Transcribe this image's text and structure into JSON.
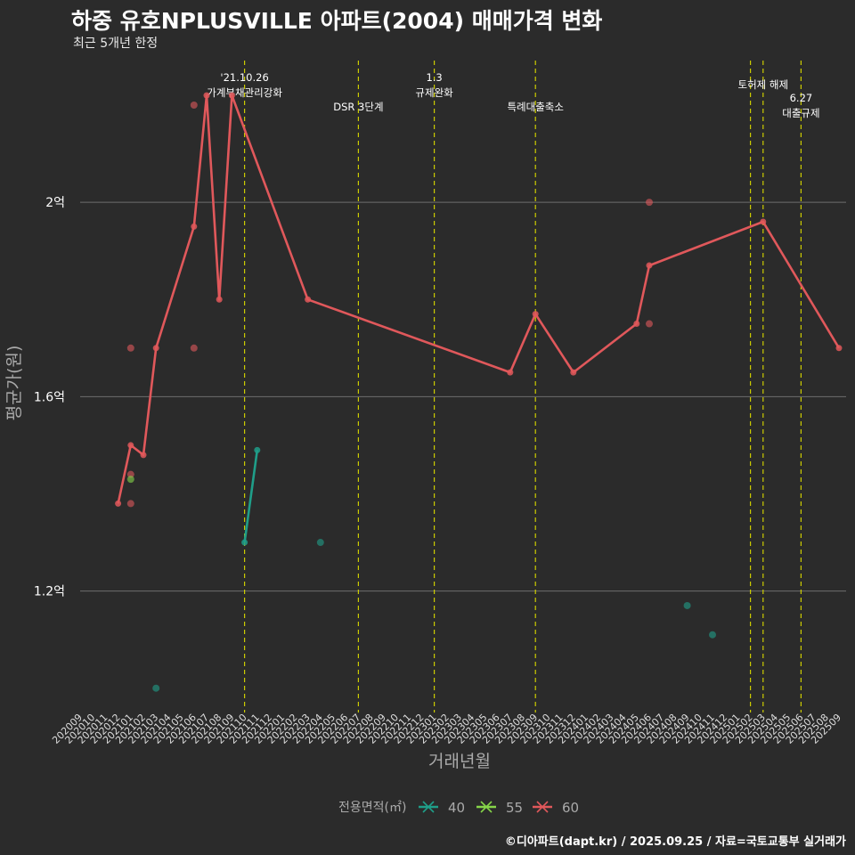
{
  "header": {
    "title": "하중 유호NPLUSVILLE 아파트(2004) 매매가격 변화",
    "subtitle": "최근 5개년 한정"
  },
  "caption": "©디아파트(dapt.kr) / 2025.09.25 / 자료=국토교통부 실거래가",
  "colors": {
    "s40": "#1f9e89",
    "s55": "#86d549",
    "s60": "#e0585b",
    "vline": "#cccc00",
    "grid": "#6e6e6e",
    "axis_text": "#ffffff",
    "axis_title": "#aaaaaa"
  },
  "chart_data": {
    "type": "line",
    "xlabel": "거래년월",
    "ylabel": "평균가(원)",
    "ylim": [
      0.95,
      2.31
    ],
    "yticks": [
      {
        "v": 1.2,
        "label": "1.2억"
      },
      {
        "v": 1.6,
        "label": "1.6억"
      },
      {
        "v": 2.0,
        "label": "2억"
      }
    ],
    "categories": [
      "202009",
      "202010",
      "202011",
      "202012",
      "202101",
      "202102",
      "202103",
      "202104",
      "202105",
      "202106",
      "202107",
      "202108",
      "202109",
      "202110",
      "202111",
      "202112",
      "202201",
      "202202",
      "202203",
      "202204",
      "202205",
      "202206",
      "202207",
      "202208",
      "202209",
      "202210",
      "202211",
      "202212",
      "202301",
      "202302",
      "202303",
      "202304",
      "202305",
      "202306",
      "202307",
      "202308",
      "202309",
      "202310",
      "202311",
      "202312",
      "202401",
      "202402",
      "202403",
      "202404",
      "202405",
      "202406",
      "202407",
      "202408",
      "202409",
      "202410",
      "202411",
      "202412",
      "202501",
      "202502",
      "202503",
      "202504",
      "202505",
      "202506",
      "202507",
      "202508",
      "202509"
    ],
    "legend_title": "전용면적(㎡)",
    "legend": [
      {
        "key": "s40",
        "label": "40"
      },
      {
        "key": "s55",
        "label": "55"
      },
      {
        "key": "s60",
        "label": "60"
      }
    ],
    "events": [
      {
        "month": "202110",
        "lines": [
          "'21.10.26",
          "가계부채관리강화"
        ],
        "level": 0
      },
      {
        "month": "202207",
        "lines": [
          "DSR 3단계"
        ],
        "level": 1
      },
      {
        "month": "202301",
        "lines": [
          "1.3",
          "규제완화"
        ],
        "level": 0
      },
      {
        "month": "202309",
        "lines": [
          "특례대출축소"
        ],
        "level": 1
      },
      {
        "month": "202502",
        "lines": [],
        "level": 0
      },
      {
        "month": "202503",
        "lines": [
          "토허제 해제"
        ],
        "level": 2
      },
      {
        "month": "202506",
        "lines": [
          "6.27",
          "대출규제"
        ],
        "level": 3
      }
    ],
    "series": [
      {
        "name": "60",
        "key": "s60",
        "line": [
          [
            "202012",
            1.38
          ],
          [
            "202101",
            1.5
          ],
          [
            "202102",
            1.48
          ],
          [
            "202103",
            1.7
          ],
          [
            "202106",
            1.95
          ],
          [
            "202107",
            2.22
          ],
          [
            "202108",
            1.8
          ],
          [
            "202109",
            2.22
          ],
          [
            "202203",
            1.8
          ],
          [
            "202307",
            1.65
          ],
          [
            "202309",
            1.77
          ],
          [
            "202312",
            1.65
          ],
          [
            "202405",
            1.75
          ],
          [
            "202406",
            1.87
          ],
          [
            "202503",
            1.96
          ],
          [
            "202509",
            1.7
          ]
        ],
        "points": [
          [
            "202101",
            1.7
          ],
          [
            "202101",
            1.44
          ],
          [
            "202101",
            1.38
          ],
          [
            "202106",
            1.7
          ],
          [
            "202106",
            2.2
          ],
          [
            "202406",
            1.75
          ],
          [
            "202406",
            2.0
          ]
        ]
      },
      {
        "name": "40",
        "key": "s40",
        "line": [
          [
            "202110",
            1.3
          ],
          [
            "202111",
            1.49
          ]
        ],
        "points": [
          [
            "202103",
            1.0
          ],
          [
            "202204",
            1.3
          ],
          [
            "202409",
            1.17
          ],
          [
            "202411",
            1.11
          ]
        ]
      },
      {
        "name": "55",
        "key": "s55",
        "line": [],
        "points": [
          [
            "202101",
            1.43
          ]
        ]
      }
    ]
  }
}
